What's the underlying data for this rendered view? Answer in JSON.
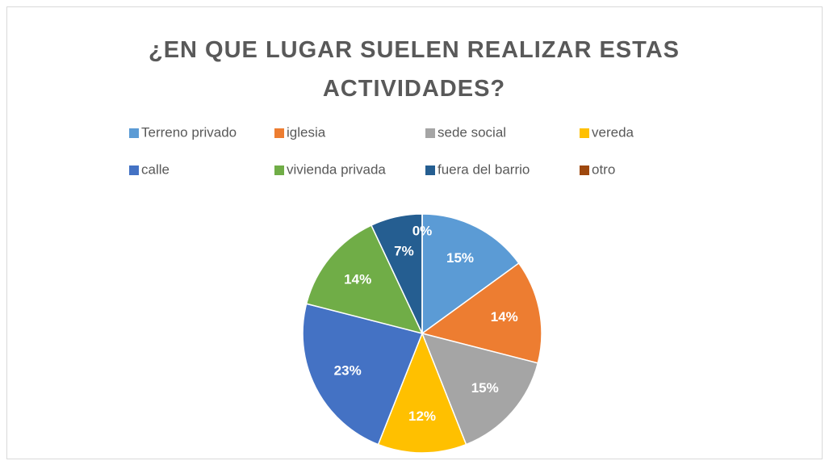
{
  "chart_data": {
    "type": "pie",
    "title": "¿EN QUE LUGAR SUELEN REALIZAR ESTAS ACTIVIDADES?",
    "categories": [
      "Terreno privado",
      "iglesia",
      "sede social",
      "vereda",
      "calle",
      "vivienda privada",
      "fuera del barrio",
      "otro"
    ],
    "values": [
      15,
      14,
      15,
      12,
      23,
      14,
      7,
      0
    ],
    "value_labels": [
      "15%",
      "14%",
      "15%",
      "12%",
      "23%",
      "14%",
      "7%",
      "0%"
    ],
    "colors": [
      "#5b9bd5",
      "#ed7d31",
      "#a5a5a5",
      "#ffc000",
      "#4472c4",
      "#70ad47",
      "#255e91",
      "#9e480e"
    ],
    "legend": "top"
  }
}
